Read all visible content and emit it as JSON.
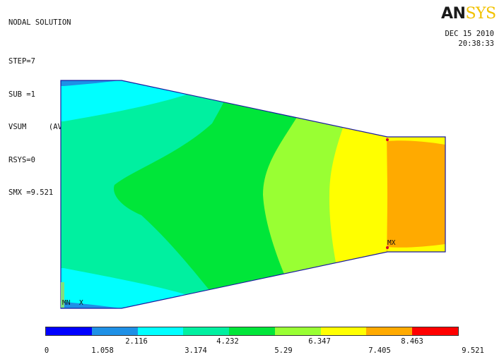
{
  "header": {
    "title": "NODAL SOLUTION",
    "lines": [
      "STEP=7",
      "SUB =1",
      "VSUM     (AVG)",
      "RSYS=0",
      "SMX =9.521"
    ]
  },
  "logo": {
    "part1": "AN",
    "part2": "SYS"
  },
  "timestamp": {
    "date": "DEC 15 2010",
    "time": "20:38:33"
  },
  "plot_labels": {
    "max_marker": "MX",
    "min_marker": "MN",
    "x_axis": "X"
  },
  "legend": {
    "colors": [
      "#0000ff",
      "#1e90e6",
      "#00ffff",
      "#00f0a0",
      "#00e639",
      "#99ff33",
      "#ffff00",
      "#ffaa00",
      "#ff0000"
    ],
    "ticks_top": [
      "2.116",
      "4.232",
      "6.347",
      "8.463"
    ],
    "ticks_bottom": [
      "0",
      "1.058",
      "3.174",
      "5.29",
      "7.405",
      "9.521"
    ]
  }
}
